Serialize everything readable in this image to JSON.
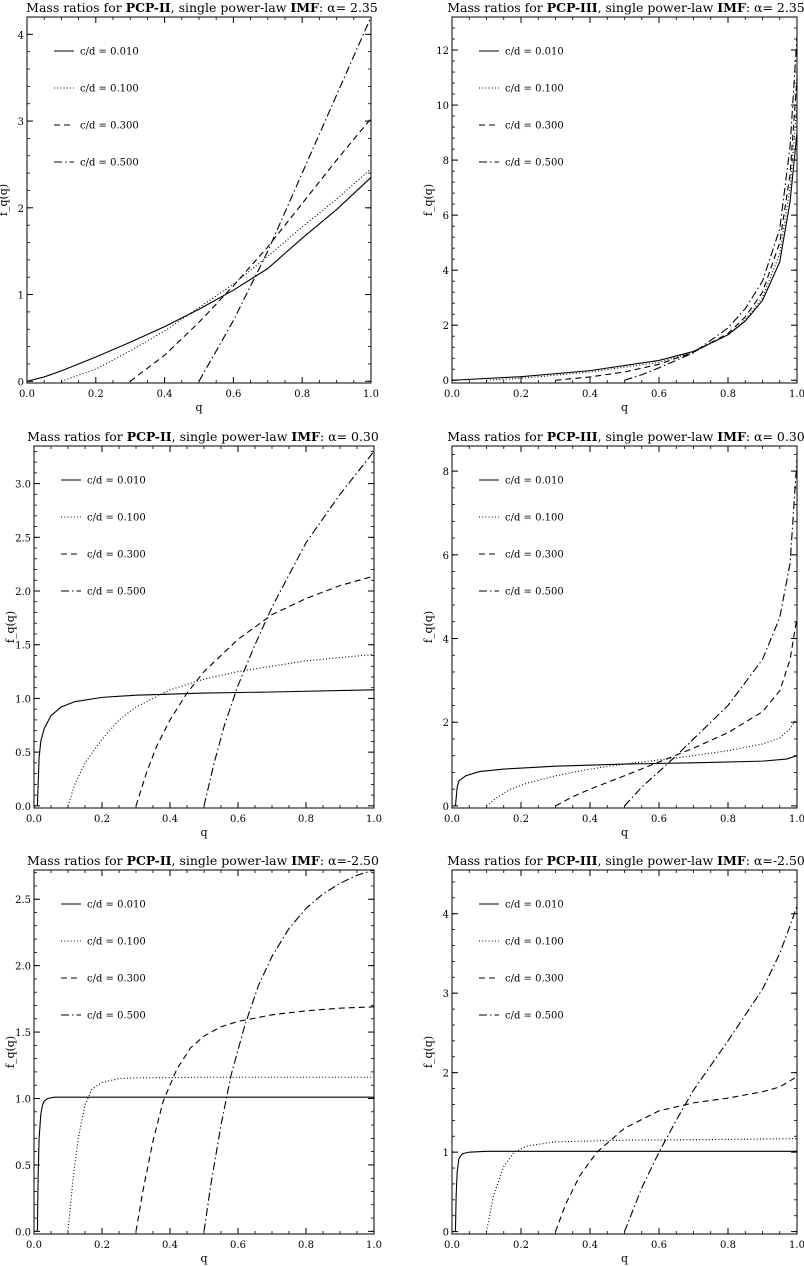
{
  "figure": {
    "legend_prefix": "c/d = ",
    "line_styles": [
      "solid",
      "dotted",
      "dashed",
      "dashdot"
    ]
  },
  "chart_data": [
    {
      "type": "line",
      "title": {
        "prefix": "Mass ratios for ",
        "model": "PCP-II",
        "mid": ", single power-law ",
        "imf": "IMF",
        "alpha_label": ": α= 2.35"
      },
      "xlabel": "q",
      "ylabel": "f_q(q)",
      "xlim": [
        0,
        1
      ],
      "ylim": [
        -0.02,
        4.2
      ],
      "xticks": [
        0,
        0.2,
        0.4,
        0.6,
        0.8,
        1.0
      ],
      "xtick_labels": [
        "0.0",
        "0.2",
        "0.4",
        "0.6",
        "0.8",
        "1.0"
      ],
      "yticks": [
        0,
        1,
        2,
        3,
        4
      ],
      "ytick_labels": [
        "0",
        "1",
        "2",
        "3",
        "4"
      ],
      "legend_position": "top-left",
      "series": [
        {
          "name": "0.010",
          "x": [
            0.0,
            0.05,
            0.1,
            0.2,
            0.3,
            0.4,
            0.5,
            0.6,
            0.7,
            0.8,
            0.9,
            1.0
          ],
          "y": [
            0.0,
            0.05,
            0.12,
            0.28,
            0.45,
            0.63,
            0.83,
            1.05,
            1.3,
            1.65,
            1.98,
            2.35
          ]
        },
        {
          "name": "0.100",
          "x": [
            0.1,
            0.2,
            0.3,
            0.4,
            0.5,
            0.6,
            0.7,
            0.8,
            0.9,
            1.0
          ],
          "y": [
            0.0,
            0.14,
            0.35,
            0.58,
            0.85,
            1.12,
            1.44,
            1.78,
            2.1,
            2.45
          ]
        },
        {
          "name": "0.300",
          "x": [
            0.3,
            0.4,
            0.5,
            0.6,
            0.7,
            0.8,
            0.9,
            1.0
          ],
          "y": [
            0.0,
            0.3,
            0.68,
            1.1,
            1.55,
            2.05,
            2.55,
            3.03
          ]
        },
        {
          "name": "0.500",
          "x": [
            0.5,
            0.6,
            0.7,
            0.8,
            0.9,
            1.0
          ],
          "y": [
            0.0,
            0.7,
            1.5,
            2.4,
            3.3,
            4.2
          ]
        }
      ]
    },
    {
      "type": "line",
      "title": {
        "prefix": "Mass ratios for ",
        "model": "PCP-III",
        "mid": ", single power-law ",
        "imf": "IMF",
        "alpha_label": ": α= 2.35"
      },
      "xlabel": "q",
      "ylabel": "f_q(q)",
      "xlim": [
        0,
        1
      ],
      "ylim": [
        -0.1,
        13.2
      ],
      "xticks": [
        0,
        0.2,
        0.4,
        0.6,
        0.8,
        1.0
      ],
      "xtick_labels": [
        "0.0",
        "0.2",
        "0.4",
        "0.6",
        "0.8",
        "1.0"
      ],
      "yticks": [
        0,
        2,
        4,
        6,
        8,
        10,
        12
      ],
      "ytick_labels": [
        "0",
        "2",
        "4",
        "6",
        "8",
        "10",
        "12"
      ],
      "legend_position": "top-left",
      "series": [
        {
          "name": "0.010",
          "x": [
            0.0,
            0.2,
            0.4,
            0.6,
            0.7,
            0.8,
            0.85,
            0.9,
            0.95,
            0.98,
            1.0
          ],
          "y": [
            0.0,
            0.13,
            0.35,
            0.72,
            1.05,
            1.65,
            2.15,
            2.9,
            4.3,
            6.5,
            9.0
          ]
        },
        {
          "name": "0.100",
          "x": [
            0.1,
            0.2,
            0.4,
            0.6,
            0.7,
            0.8,
            0.85,
            0.9,
            0.95,
            0.98,
            1.0
          ],
          "y": [
            0.0,
            0.07,
            0.3,
            0.65,
            1.02,
            1.65,
            2.2,
            3.0,
            4.6,
            7.0,
            10.0
          ]
        },
        {
          "name": "0.300",
          "x": [
            0.3,
            0.4,
            0.5,
            0.6,
            0.7,
            0.8,
            0.85,
            0.9,
            0.95,
            0.98,
            1.0
          ],
          "y": [
            0.0,
            0.12,
            0.3,
            0.58,
            1.02,
            1.7,
            2.3,
            3.2,
            5.0,
            7.5,
            11.0
          ]
        },
        {
          "name": "0.500",
          "x": [
            0.5,
            0.55,
            0.6,
            0.7,
            0.8,
            0.85,
            0.9,
            0.95,
            0.98,
            1.0
          ],
          "y": [
            0.0,
            0.2,
            0.45,
            1.0,
            1.9,
            2.6,
            3.6,
            5.5,
            8.5,
            12.5
          ]
        }
      ]
    },
    {
      "type": "line",
      "title": {
        "prefix": "Mass ratios for ",
        "model": "PCP-II",
        "mid": ", single power-law ",
        "imf": "IMF",
        "alpha_label": ": α= 0.30"
      },
      "xlabel": "q",
      "ylabel": "f_q(q)",
      "xlim": [
        0,
        1
      ],
      "ylim": [
        -0.02,
        3.35
      ],
      "xticks": [
        0,
        0.2,
        0.4,
        0.6,
        0.8,
        1.0
      ],
      "xtick_labels": [
        "0.0",
        "0.2",
        "0.4",
        "0.6",
        "0.8",
        "1.0"
      ],
      "yticks": [
        0,
        0.5,
        1.0,
        1.5,
        2.0,
        2.5,
        3.0
      ],
      "ytick_labels": [
        "0.0",
        "0.5",
        "1.0",
        "1.5",
        "2.0",
        "2.5",
        "3.0"
      ],
      "legend_position": "top-left",
      "series": [
        {
          "name": "0.010",
          "x": [
            0.01,
            0.015,
            0.02,
            0.03,
            0.05,
            0.08,
            0.12,
            0.2,
            0.3,
            0.5,
            0.7,
            1.0
          ],
          "y": [
            0.0,
            0.45,
            0.6,
            0.72,
            0.84,
            0.92,
            0.97,
            1.01,
            1.03,
            1.05,
            1.06,
            1.08
          ]
        },
        {
          "name": "0.100",
          "x": [
            0.1,
            0.12,
            0.15,
            0.2,
            0.25,
            0.3,
            0.4,
            0.5,
            0.6,
            0.7,
            0.8,
            0.9,
            1.0
          ],
          "y": [
            0.0,
            0.2,
            0.4,
            0.62,
            0.8,
            0.92,
            1.08,
            1.18,
            1.25,
            1.3,
            1.35,
            1.38,
            1.41
          ]
        },
        {
          "name": "0.300",
          "x": [
            0.3,
            0.33,
            0.36,
            0.4,
            0.45,
            0.5,
            0.6,
            0.7,
            0.8,
            0.9,
            1.0
          ],
          "y": [
            0.0,
            0.3,
            0.55,
            0.8,
            1.05,
            1.25,
            1.55,
            1.78,
            1.93,
            2.05,
            2.14
          ]
        },
        {
          "name": "0.500",
          "x": [
            0.5,
            0.53,
            0.56,
            0.6,
            0.65,
            0.7,
            0.8,
            0.9,
            1.0
          ],
          "y": [
            0.0,
            0.4,
            0.75,
            1.12,
            1.5,
            1.85,
            2.45,
            2.9,
            3.3
          ]
        }
      ]
    },
    {
      "type": "line",
      "title": {
        "prefix": "Mass ratios for ",
        "model": "PCP-III",
        "mid": ", single power-law ",
        "imf": "IMF",
        "alpha_label": ": α= 0.30"
      },
      "xlabel": "q",
      "ylabel": "f_q(q)",
      "xlim": [
        0,
        1
      ],
      "ylim": [
        -0.05,
        8.6
      ],
      "xticks": [
        0,
        0.2,
        0.4,
        0.6,
        0.8,
        1.0
      ],
      "xtick_labels": [
        "0.0",
        "0.2",
        "0.4",
        "0.6",
        "0.8",
        "1.0"
      ],
      "yticks": [
        0,
        2,
        4,
        6,
        8
      ],
      "ytick_labels": [
        "0",
        "2",
        "4",
        "6",
        "8"
      ],
      "legend_position": "top-left",
      "series": [
        {
          "name": "0.010",
          "x": [
            0.01,
            0.015,
            0.02,
            0.04,
            0.08,
            0.15,
            0.3,
            0.5,
            0.7,
            0.9,
            0.97,
            1.0
          ],
          "y": [
            0.0,
            0.45,
            0.6,
            0.72,
            0.82,
            0.88,
            0.95,
            1.0,
            1.03,
            1.07,
            1.12,
            1.2
          ]
        },
        {
          "name": "0.100",
          "x": [
            0.1,
            0.13,
            0.17,
            0.22,
            0.3,
            0.4,
            0.5,
            0.6,
            0.7,
            0.8,
            0.9,
            0.95,
            0.98,
            1.0
          ],
          "y": [
            0.0,
            0.2,
            0.4,
            0.55,
            0.72,
            0.88,
            1.0,
            1.1,
            1.2,
            1.32,
            1.48,
            1.62,
            1.85,
            2.1
          ]
        },
        {
          "name": "0.300",
          "x": [
            0.3,
            0.35,
            0.4,
            0.5,
            0.6,
            0.7,
            0.8,
            0.9,
            0.95,
            0.98,
            1.0
          ],
          "y": [
            0.0,
            0.22,
            0.4,
            0.72,
            1.05,
            1.38,
            1.75,
            2.25,
            2.75,
            3.5,
            4.5
          ]
        },
        {
          "name": "0.500",
          "x": [
            0.5,
            0.55,
            0.6,
            0.65,
            0.7,
            0.8,
            0.9,
            0.95,
            0.98,
            1.0
          ],
          "y": [
            0.0,
            0.45,
            0.82,
            1.2,
            1.6,
            2.4,
            3.5,
            4.5,
            5.8,
            8.3
          ]
        }
      ]
    },
    {
      "type": "line",
      "title": {
        "prefix": "Mass ratios for ",
        "model": "PCP-II",
        "mid": ", single power-law ",
        "imf": "IMF",
        "alpha_label": ": α=-2.50"
      },
      "xlabel": "q",
      "ylabel": "f_q(q)",
      "xlim": [
        0,
        1
      ],
      "ylim": [
        -0.02,
        2.72
      ],
      "xticks": [
        0,
        0.2,
        0.4,
        0.6,
        0.8,
        1.0
      ],
      "xtick_labels": [
        "0.0",
        "0.2",
        "0.4",
        "0.6",
        "0.8",
        "1.0"
      ],
      "yticks": [
        0,
        0.5,
        1.0,
        1.5,
        2.0,
        2.5
      ],
      "ytick_labels": [
        "0.0",
        "0.5",
        "1.0",
        "1.5",
        "2.0",
        "2.5"
      ],
      "legend_position": "top-left",
      "series": [
        {
          "name": "0.010",
          "x": [
            0.01,
            0.012,
            0.015,
            0.02,
            0.025,
            0.03,
            0.04,
            0.06,
            0.1,
            0.5,
            1.0
          ],
          "y": [
            0.0,
            0.4,
            0.7,
            0.88,
            0.95,
            0.98,
            1.0,
            1.01,
            1.01,
            1.01,
            1.01
          ]
        },
        {
          "name": "0.100",
          "x": [
            0.1,
            0.115,
            0.13,
            0.15,
            0.17,
            0.2,
            0.25,
            0.3,
            0.5,
            1.0
          ],
          "y": [
            0.0,
            0.4,
            0.7,
            0.95,
            1.07,
            1.12,
            1.15,
            1.155,
            1.16,
            1.16
          ]
        },
        {
          "name": "0.300",
          "x": [
            0.3,
            0.32,
            0.35,
            0.38,
            0.42,
            0.46,
            0.5,
            0.55,
            0.6,
            0.7,
            0.8,
            0.9,
            1.0
          ],
          "y": [
            0.0,
            0.3,
            0.68,
            0.98,
            1.22,
            1.38,
            1.47,
            1.54,
            1.58,
            1.63,
            1.66,
            1.68,
            1.69
          ]
        },
        {
          "name": "0.500",
          "x": [
            0.5,
            0.52,
            0.55,
            0.58,
            0.62,
            0.66,
            0.7,
            0.75,
            0.8,
            0.85,
            0.9,
            0.95,
            1.0
          ],
          "y": [
            0.0,
            0.35,
            0.8,
            1.18,
            1.55,
            1.85,
            2.07,
            2.28,
            2.43,
            2.54,
            2.62,
            2.68,
            2.72
          ]
        }
      ]
    },
    {
      "type": "line",
      "title": {
        "prefix": "Mass ratios for ",
        "model": "PCP-III",
        "mid": ", single power-law ",
        "imf": "IMF",
        "alpha_label": ": α=-2.50"
      },
      "xlabel": "q",
      "ylabel": "f_q(q)",
      "xlim": [
        0,
        1
      ],
      "ylim": [
        -0.03,
        4.55
      ],
      "xticks": [
        0,
        0.2,
        0.4,
        0.6,
        0.8,
        1.0
      ],
      "xtick_labels": [
        "0.0",
        "0.2",
        "0.4",
        "0.6",
        "0.8",
        "1.0"
      ],
      "yticks": [
        0,
        1,
        2,
        3,
        4
      ],
      "ytick_labels": [
        "0",
        "1",
        "2",
        "3",
        "4"
      ],
      "legend_position": "top-left",
      "series": [
        {
          "name": "0.010",
          "x": [
            0.01,
            0.012,
            0.015,
            0.02,
            0.03,
            0.05,
            0.1,
            0.5,
            1.0
          ],
          "y": [
            0.0,
            0.45,
            0.75,
            0.92,
            0.98,
            1.0,
            1.01,
            1.01,
            1.01
          ]
        },
        {
          "name": "0.100",
          "x": [
            0.1,
            0.12,
            0.15,
            0.18,
            0.22,
            0.3,
            0.5,
            0.8,
            1.0
          ],
          "y": [
            0.0,
            0.45,
            0.82,
            1.0,
            1.08,
            1.13,
            1.15,
            1.16,
            1.17
          ]
        },
        {
          "name": "0.300",
          "x": [
            0.3,
            0.33,
            0.37,
            0.42,
            0.5,
            0.6,
            0.7,
            0.8,
            0.9,
            0.95,
            1.0
          ],
          "y": [
            0.0,
            0.35,
            0.7,
            1.0,
            1.3,
            1.52,
            1.62,
            1.68,
            1.76,
            1.82,
            1.95
          ]
        },
        {
          "name": "0.500",
          "x": [
            0.5,
            0.55,
            0.6,
            0.65,
            0.7,
            0.8,
            0.9,
            0.95,
            0.98,
            1.0
          ],
          "y": [
            0.0,
            0.55,
            1.0,
            1.4,
            1.78,
            2.4,
            3.05,
            3.5,
            3.85,
            4.1
          ]
        }
      ]
    }
  ]
}
